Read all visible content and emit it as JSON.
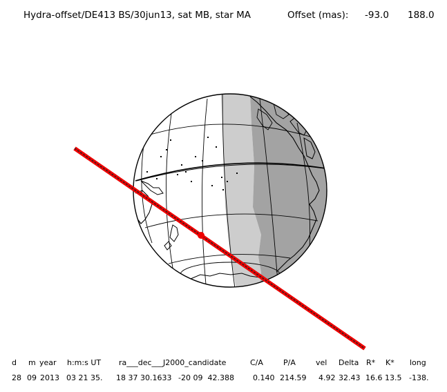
{
  "title": {
    "main": "Hydra-offset/DE413 BS/30jun13, sat MB, star MA",
    "offset_label": "Offset (mas):",
    "offset_x": "-93.0",
    "offset_y": "188.0"
  },
  "table": {
    "headers": [
      "d",
      "m",
      "year",
      "h:m:s UT",
      "ra___dec___J2000_candidate",
      "C/A",
      "P/A",
      "vel",
      "Delta",
      "R*",
      "K*",
      "long"
    ],
    "values": [
      "28",
      "09",
      "2013",
      "03 21 35.",
      "18 37 30.1633",
      "-20 09  42.388",
      "0.140",
      "214.59",
      "4.92",
      "32.43",
      "16.6",
      "13.5",
      "-138."
    ]
  },
  "colors": {
    "night_shade": "#a3a3a3",
    "twilight_shade": "#cdcdcd",
    "day": "#ffffff",
    "track": "#ee0000",
    "track_center": "#222222",
    "outline": "#000000"
  }
}
